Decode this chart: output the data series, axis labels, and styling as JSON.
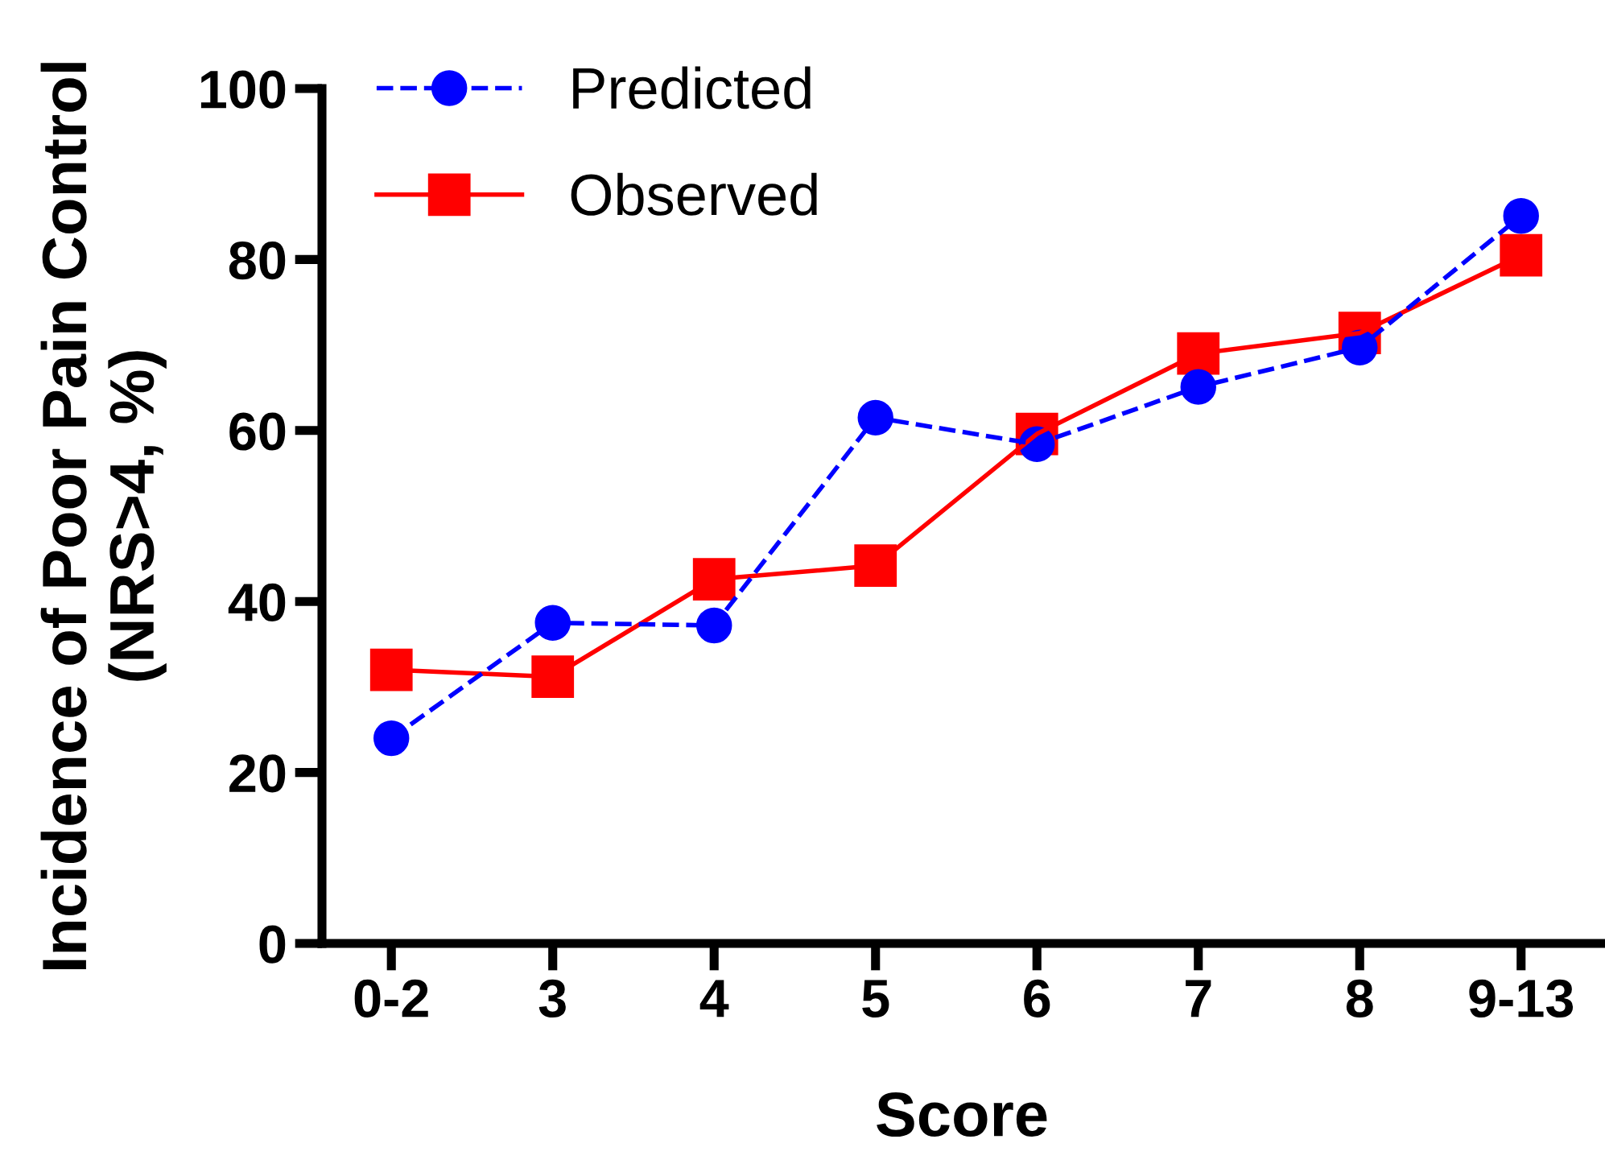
{
  "chart_data": {
    "type": "line",
    "xlabel": "Score",
    "ylabel": "Incidence of Poor Pain Control\n(NRS>4, %)",
    "categories": [
      "0-2",
      "3",
      "4",
      "5",
      "6",
      "7",
      "8",
      "9-13"
    ],
    "series": [
      {
        "name": "Predicted",
        "color": "#0000ff",
        "marker": "circle",
        "line_style": "dashed",
        "values": [
          24.0,
          37.5,
          37.2,
          61.5,
          58.4,
          65.1,
          69.7,
          85.1
        ]
      },
      {
        "name": "Observed",
        "color": "#ff0000",
        "marker": "square",
        "line_style": "solid",
        "values": [
          32.0,
          31.2,
          42.6,
          44.2,
          59.6,
          69.0,
          71.4,
          80.5
        ]
      }
    ],
    "ylim": [
      0,
      100
    ],
    "yticks": [
      0,
      20,
      40,
      60,
      80,
      100
    ],
    "grid": false,
    "legend": "top left"
  }
}
